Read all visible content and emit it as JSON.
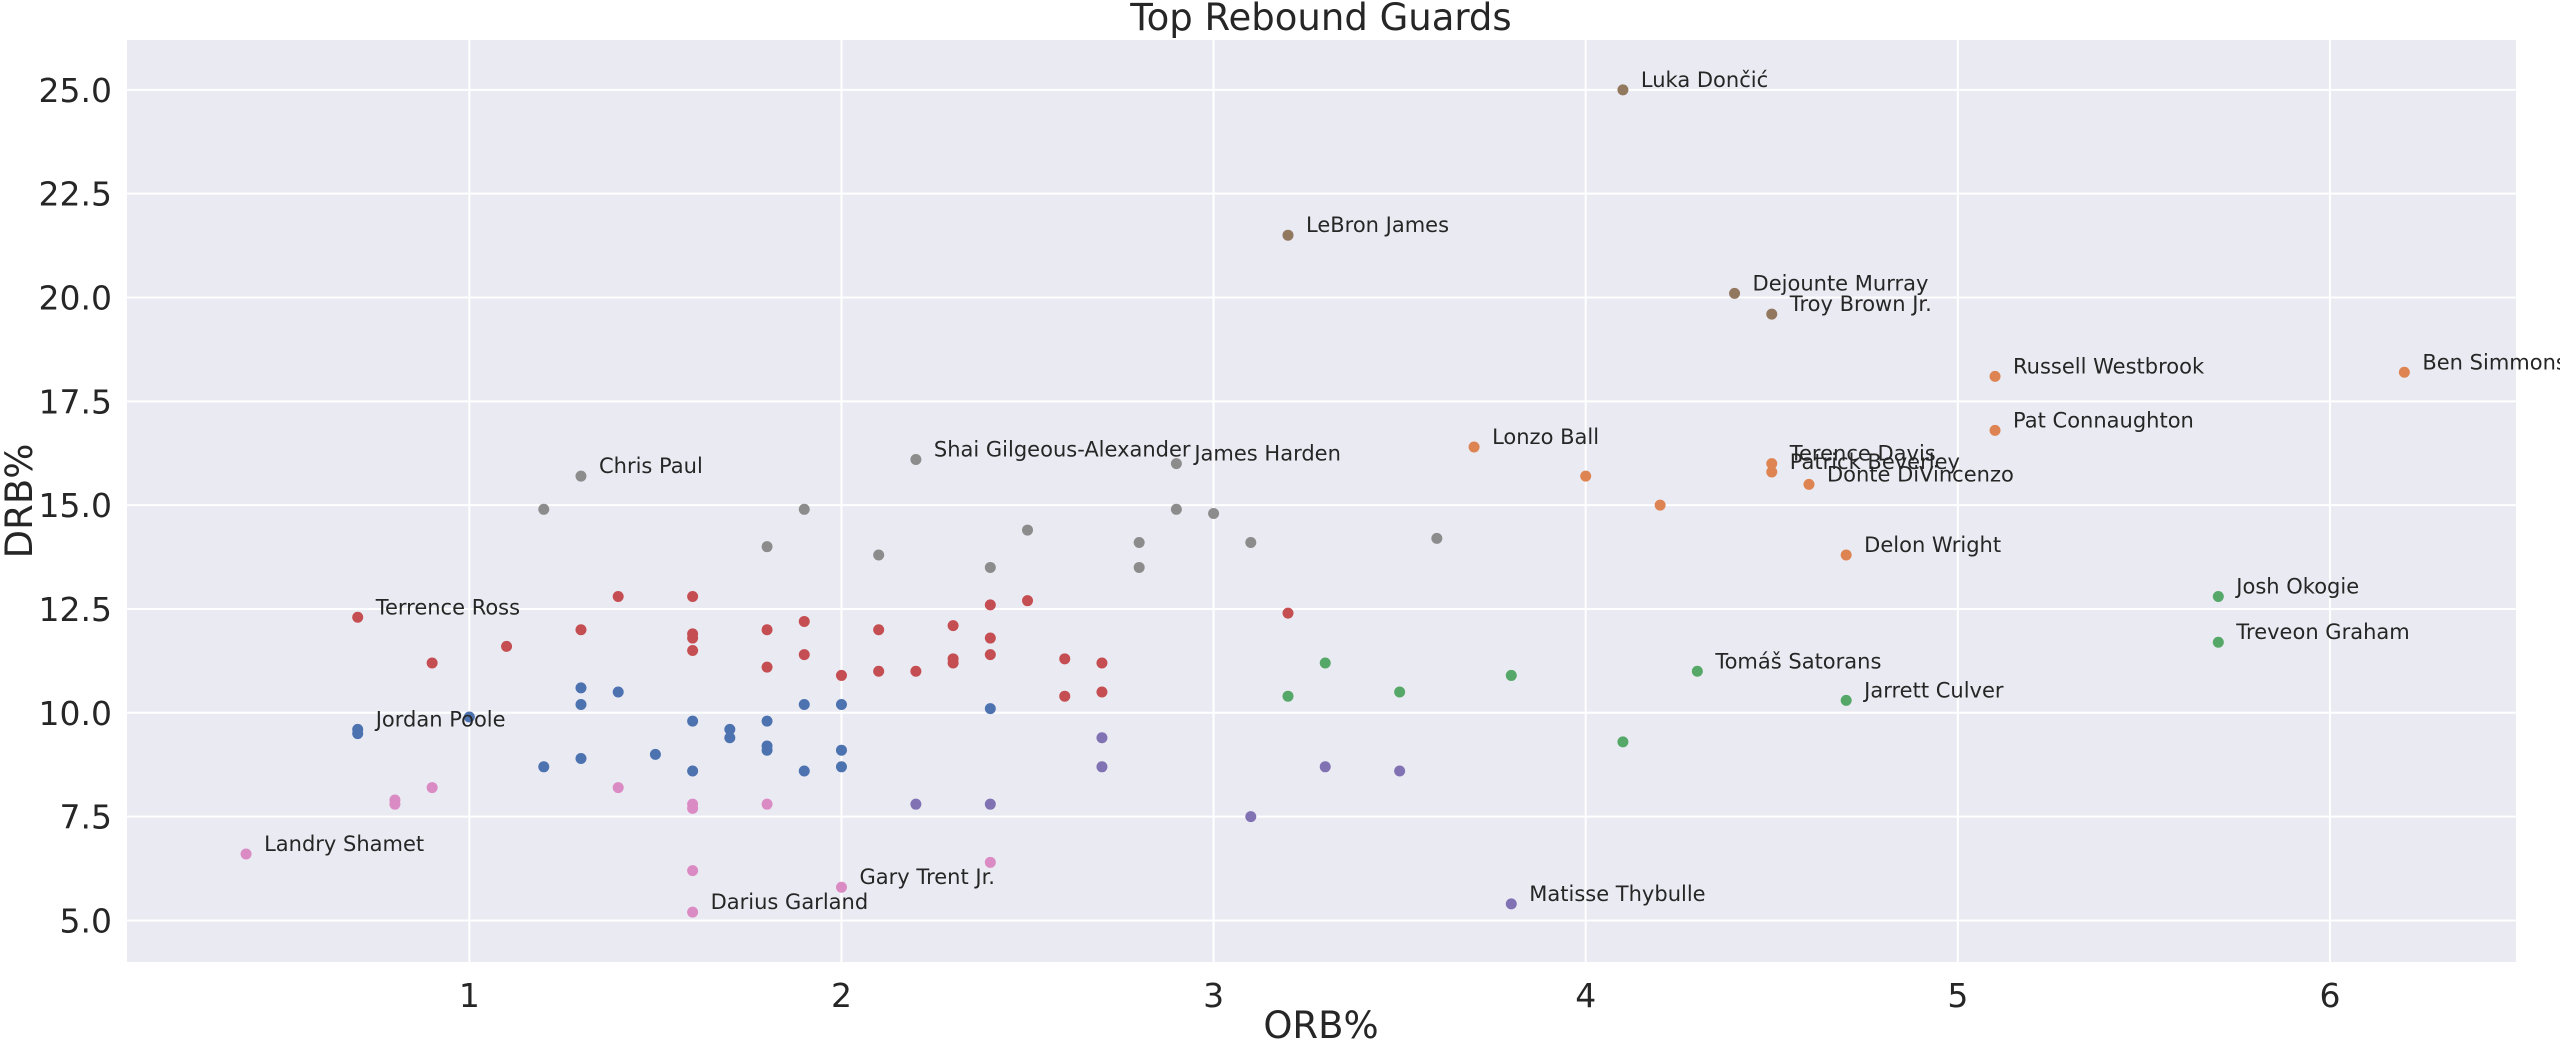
{
  "chart_data": {
    "type": "scatter",
    "title": "Top Rebound Guards",
    "xlabel": "ORB%",
    "ylabel": "DRB%",
    "xlim": [
      0.08,
      6.5
    ],
    "ylim": [
      4.0,
      26.2
    ],
    "xticks": [
      1,
      2,
      3,
      4,
      5,
      6
    ],
    "yticks": [
      5.0,
      7.5,
      10.0,
      12.5,
      15.0,
      17.5,
      20.0,
      22.5,
      25.0
    ],
    "xtick_labels": [
      "1",
      "2",
      "3",
      "4",
      "5",
      "6"
    ],
    "ytick_labels": [
      "5.0",
      "7.5",
      "10.0",
      "12.5",
      "15.0",
      "17.5",
      "20.0",
      "22.5",
      "25.0"
    ],
    "grid": true,
    "background": "#EAEAF2",
    "series": [
      {
        "color": "#4C72B0",
        "points": [
          [
            0.7,
            9.6
          ],
          [
            0.7,
            9.5
          ],
          [
            1.0,
            9.9
          ],
          [
            1.2,
            8.7
          ],
          [
            1.3,
            10.6
          ],
          [
            1.3,
            10.2
          ],
          [
            1.3,
            8.9
          ],
          [
            1.4,
            10.5
          ],
          [
            1.5,
            9.0
          ],
          [
            1.6,
            9.8
          ],
          [
            1.6,
            8.6
          ],
          [
            1.7,
            9.6
          ],
          [
            1.7,
            9.4
          ],
          [
            1.8,
            9.8
          ],
          [
            1.8,
            9.2
          ],
          [
            1.8,
            9.1
          ],
          [
            1.9,
            10.2
          ],
          [
            1.9,
            8.6
          ],
          [
            2.0,
            10.2
          ],
          [
            2.0,
            9.1
          ],
          [
            2.0,
            8.7
          ],
          [
            2.4,
            10.1
          ]
        ]
      },
      {
        "color": "#DD8452",
        "points": [
          [
            3.7,
            16.4
          ],
          [
            4.0,
            15.7
          ],
          [
            4.2,
            15.0
          ],
          [
            4.5,
            16.0
          ],
          [
            4.5,
            15.8
          ],
          [
            4.6,
            15.5
          ],
          [
            4.7,
            13.8
          ],
          [
            5.1,
            18.1
          ],
          [
            5.1,
            16.8
          ],
          [
            6.2,
            18.2
          ]
        ]
      },
      {
        "color": "#55A868",
        "points": [
          [
            3.2,
            10.4
          ],
          [
            3.3,
            11.2
          ],
          [
            3.5,
            10.5
          ],
          [
            3.8,
            10.9
          ],
          [
            4.1,
            9.3
          ],
          [
            4.3,
            11.0
          ],
          [
            4.7,
            10.3
          ],
          [
            5.7,
            12.8
          ],
          [
            5.7,
            11.7
          ]
        ]
      },
      {
        "color": "#C44E52",
        "points": [
          [
            0.7,
            12.3
          ],
          [
            0.9,
            11.2
          ],
          [
            1.1,
            11.6
          ],
          [
            1.3,
            12.0
          ],
          [
            1.4,
            12.8
          ],
          [
            1.6,
            12.8
          ],
          [
            1.6,
            11.9
          ],
          [
            1.6,
            11.8
          ],
          [
            1.6,
            11.5
          ],
          [
            1.8,
            12.0
          ],
          [
            1.8,
            11.1
          ],
          [
            1.9,
            12.2
          ],
          [
            1.9,
            11.4
          ],
          [
            2.0,
            10.9
          ],
          [
            2.1,
            12.0
          ],
          [
            2.1,
            11.0
          ],
          [
            2.2,
            11.0
          ],
          [
            2.3,
            12.1
          ],
          [
            2.3,
            11.3
          ],
          [
            2.3,
            11.2
          ],
          [
            2.4,
            12.6
          ],
          [
            2.4,
            11.8
          ],
          [
            2.4,
            11.4
          ],
          [
            2.5,
            12.7
          ],
          [
            2.6,
            11.3
          ],
          [
            2.6,
            10.4
          ],
          [
            2.7,
            11.2
          ],
          [
            2.7,
            10.5
          ],
          [
            3.2,
            12.4
          ]
        ]
      },
      {
        "color": "#8172B3",
        "points": [
          [
            2.2,
            7.8
          ],
          [
            2.4,
            7.8
          ],
          [
            2.7,
            9.4
          ],
          [
            2.7,
            8.7
          ],
          [
            3.1,
            7.5
          ],
          [
            3.3,
            8.7
          ],
          [
            3.5,
            8.6
          ],
          [
            3.8,
            5.4
          ]
        ]
      },
      {
        "color": "#937860",
        "points": [
          [
            3.2,
            21.5
          ],
          [
            4.1,
            25.0
          ],
          [
            4.4,
            20.1
          ],
          [
            4.5,
            19.6
          ]
        ]
      },
      {
        "color": "#DA8BC3",
        "points": [
          [
            0.4,
            6.6
          ],
          [
            0.8,
            7.9
          ],
          [
            0.8,
            7.8
          ],
          [
            0.9,
            8.2
          ],
          [
            1.4,
            8.2
          ],
          [
            1.6,
            7.8
          ],
          [
            1.6,
            7.7
          ],
          [
            1.6,
            6.2
          ],
          [
            1.6,
            5.2
          ],
          [
            1.8,
            7.8
          ],
          [
            2.0,
            5.8
          ],
          [
            2.4,
            6.4
          ]
        ]
      },
      {
        "color": "#8C8C8C",
        "points": [
          [
            1.2,
            14.9
          ],
          [
            1.3,
            15.7
          ],
          [
            1.8,
            14.0
          ],
          [
            1.9,
            14.9
          ],
          [
            2.1,
            13.8
          ],
          [
            2.2,
            16.1
          ],
          [
            2.4,
            13.5
          ],
          [
            2.5,
            14.4
          ],
          [
            2.8,
            14.1
          ],
          [
            2.8,
            13.5
          ],
          [
            2.9,
            16.0
          ],
          [
            2.9,
            14.9
          ],
          [
            3.0,
            14.8
          ],
          [
            3.1,
            14.1
          ],
          [
            3.6,
            14.2
          ]
        ]
      }
    ],
    "annotations": [
      {
        "text": "Luka Dončić",
        "x": 4.1,
        "y": 25.0
      },
      {
        "text": "LeBron James",
        "x": 3.2,
        "y": 21.5
      },
      {
        "text": "Dejounte Murray",
        "x": 4.4,
        "y": 20.1
      },
      {
        "text": "Troy Brown Jr.",
        "x": 4.5,
        "y": 19.6
      },
      {
        "text": "Russell Westbrook",
        "x": 5.1,
        "y": 18.1
      },
      {
        "text": "Ben Simmons",
        "x": 6.2,
        "y": 18.2
      },
      {
        "text": "Pat Connaughton",
        "x": 5.1,
        "y": 16.8
      },
      {
        "text": "Lonzo Ball",
        "x": 3.7,
        "y": 16.4
      },
      {
        "text": "Terence Davis",
        "x": 4.5,
        "y": 16.0
      },
      {
        "text": "Patrick Beverley",
        "x": 4.5,
        "y": 15.8
      },
      {
        "text": "Donte DiVincenzo",
        "x": 4.6,
        "y": 15.5
      },
      {
        "text": "Delon Wright",
        "x": 4.7,
        "y": 13.8
      },
      {
        "text": "Chris Paul",
        "x": 1.3,
        "y": 15.7
      },
      {
        "text": "Shai Gilgeous-Alexander",
        "x": 2.2,
        "y": 16.1
      },
      {
        "text": "James Harden",
        "x": 2.9,
        "y": 16.0
      },
      {
        "text": "Terrence Ross",
        "x": 0.7,
        "y": 12.3
      },
      {
        "text": "Josh Okogie",
        "x": 5.7,
        "y": 12.8
      },
      {
        "text": "Treveon Graham",
        "x": 5.7,
        "y": 11.7
      },
      {
        "text": "Tomáš Satorans",
        "x": 4.3,
        "y": 11.0
      },
      {
        "text": "Jarrett Culver",
        "x": 4.7,
        "y": 10.3
      },
      {
        "text": "Jordan Poole",
        "x": 0.7,
        "y": 9.6
      },
      {
        "text": "Landry Shamet",
        "x": 0.4,
        "y": 6.6
      },
      {
        "text": "Gary Trent Jr.",
        "x": 2.0,
        "y": 5.8
      },
      {
        "text": "Darius Garland",
        "x": 1.6,
        "y": 5.2
      },
      {
        "text": "Matisse Thybulle",
        "x": 3.8,
        "y": 5.4
      }
    ]
  }
}
